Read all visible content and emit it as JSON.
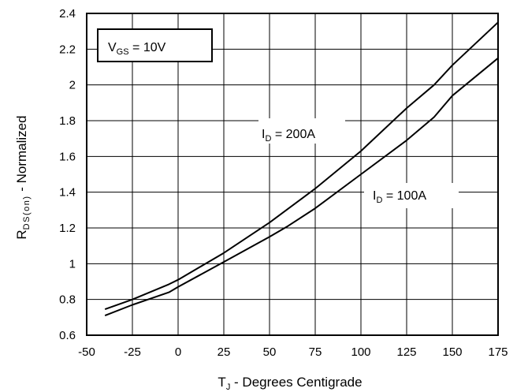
{
  "chart_data": {
    "type": "line",
    "xlabel": {
      "main": "T",
      "sub": "J",
      "rest": " - Degrees Centigrade"
    },
    "ylabel": {
      "main": "R",
      "sub": "DS(on)",
      "rest": " - Normalized"
    },
    "xlim": [
      -50,
      175
    ],
    "ylim": [
      0.6,
      2.4
    ],
    "xticks": [
      "-50",
      "-25",
      "0",
      "25",
      "50",
      "75",
      "100",
      "125",
      "150",
      "175"
    ],
    "yticks": [
      "0.6",
      "0.8",
      "1",
      "1.2",
      "1.4",
      "1.6",
      "1.8",
      "2",
      "2.2",
      "2.4"
    ],
    "grid": true,
    "legend_box": {
      "main": "V",
      "sub": "GS",
      "rest": " = 10V"
    },
    "series": [
      {
        "name": "200A",
        "label": {
          "main": "I",
          "sub": "D",
          "rest": " = 200A"
        },
        "x": [
          -40,
          -25,
          -5,
          0,
          25,
          50,
          75,
          100,
          125,
          140,
          150,
          175
        ],
        "y": [
          0.745,
          0.8,
          0.885,
          0.91,
          1.06,
          1.23,
          1.42,
          1.63,
          1.87,
          2.0,
          2.11,
          2.35
        ]
      },
      {
        "name": "100A",
        "label": {
          "main": "I",
          "sub": "D",
          "rest": " = 100A"
        },
        "x": [
          -40,
          -25,
          -5,
          0,
          25,
          50,
          60,
          75,
          100,
          125,
          140,
          150,
          175
        ],
        "y": [
          0.71,
          0.77,
          0.84,
          0.87,
          1.01,
          1.15,
          1.21,
          1.31,
          1.5,
          1.69,
          1.82,
          1.94,
          2.15
        ]
      }
    ]
  }
}
